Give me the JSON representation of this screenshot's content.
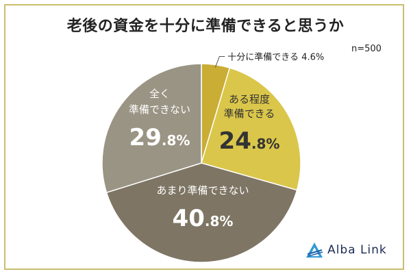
{
  "title": "老後の資金を十分に準備できると思うか",
  "sample_size": "n=500",
  "brand": {
    "name": "Alba Link"
  },
  "chart_data": {
    "type": "pie",
    "title": "老後の資金を十分に準備できると思うか",
    "legend": "none",
    "slices": [
      {
        "label": "十分に準備できる",
        "value": 4.6,
        "value_text": "4.6%",
        "color": "#c9ad35",
        "label_color": "#222222"
      },
      {
        "label": "ある程度準備できる",
        "value": 24.8,
        "value_text": "24.8%",
        "color": "#dac64a",
        "label_color": "#333333"
      },
      {
        "label": "あまり準備できない",
        "value": 40.8,
        "value_text": "40.8%",
        "color": "#7e7564",
        "label_color": "#ffffff"
      },
      {
        "label": "全く準備できない",
        "value": 29.8,
        "value_text": "29.8%",
        "color": "#9a9484",
        "label_color": "#ffffff"
      }
    ]
  }
}
